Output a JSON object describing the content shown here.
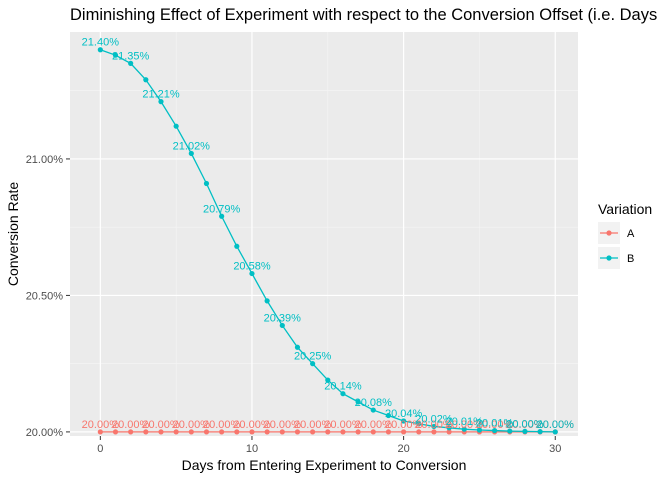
{
  "chart_data": {
    "type": "line",
    "title": "Diminishing Effect of Experiment with respect to the Conversion Offset (i.e. Days",
    "xlabel": "Days from Entering Experiment to Conversion",
    "ylabel": "Conversion Rate",
    "xlim": [
      -2,
      31.5
    ],
    "ylim": [
      19.985,
      21.465
    ],
    "x_ticks": [
      0,
      10,
      20,
      30
    ],
    "x_tick_labels": [
      "0",
      "10",
      "20",
      "30"
    ],
    "y_ticks": [
      20.0,
      20.5,
      21.0
    ],
    "y_tick_labels": [
      "20.00%",
      "20.50%",
      "21.00%"
    ],
    "grid": true,
    "legend": {
      "title": "Variation",
      "position": "right"
    },
    "x": [
      0,
      1,
      2,
      3,
      4,
      5,
      6,
      7,
      8,
      9,
      10,
      11,
      12,
      13,
      14,
      15,
      16,
      17,
      18,
      19,
      20,
      21,
      22,
      23,
      24,
      25,
      26,
      27,
      28,
      29,
      30
    ],
    "label_every": 2,
    "series": [
      {
        "name": "A",
        "color": "#F8766D",
        "values": [
          20.0,
          20.0,
          20.0,
          20.0,
          20.0,
          20.0,
          20.0,
          20.0,
          20.0,
          20.0,
          20.0,
          20.0,
          20.0,
          20.0,
          20.0,
          20.0,
          20.0,
          20.0,
          20.0,
          20.0,
          20.0,
          20.0,
          20.0,
          20.0,
          20.0,
          20.0,
          20.0,
          20.0,
          20.0,
          20.0,
          20.0
        ],
        "labels": [
          "20.00%",
          "20.00%",
          "20.00%",
          "20.00%",
          "20.00%",
          "20.00%",
          "20.00%",
          "20.00%",
          "20.00%",
          "20.00%",
          "20.00%",
          "20.00%",
          "20.00%",
          "20.00%",
          "20.00%",
          "20.00%",
          "20.00%",
          "20.00%",
          "20.00%",
          "20.00%",
          "20.00%",
          "20.00%",
          "20.00%",
          "20.00%",
          "20.00%",
          "20.00%",
          "20.00%",
          "20.00%",
          "20.00%",
          "20.00%",
          "20.00%"
        ]
      },
      {
        "name": "B",
        "color": "#00BFC4",
        "values": [
          21.4,
          21.38,
          21.35,
          21.29,
          21.21,
          21.12,
          21.02,
          20.91,
          20.79,
          20.68,
          20.58,
          20.48,
          20.39,
          20.31,
          20.25,
          20.19,
          20.14,
          20.11,
          20.08,
          20.06,
          20.04,
          20.03,
          20.02,
          20.015,
          20.01,
          20.007,
          20.005,
          20.003,
          20.002,
          20.001,
          20.0
        ],
        "labels": [
          "21.40%",
          "21.38%",
          "21.35%",
          "21.29%",
          "21.21%",
          "21.12%",
          "21.02%",
          "20.91%",
          "20.79%",
          "20.68%",
          "20.58%",
          "20.48%",
          "20.39%",
          "20.31%",
          "20.25%",
          "20.19%",
          "20.14%",
          "20.11%",
          "20.08%",
          "20.06%",
          "20.04%",
          "20.03%",
          "20.02%",
          "20.02%",
          "20.01%",
          "20.01%",
          "20.01%",
          "20.00%",
          "20.00%",
          "20.00%",
          "20.00%"
        ]
      }
    ]
  }
}
